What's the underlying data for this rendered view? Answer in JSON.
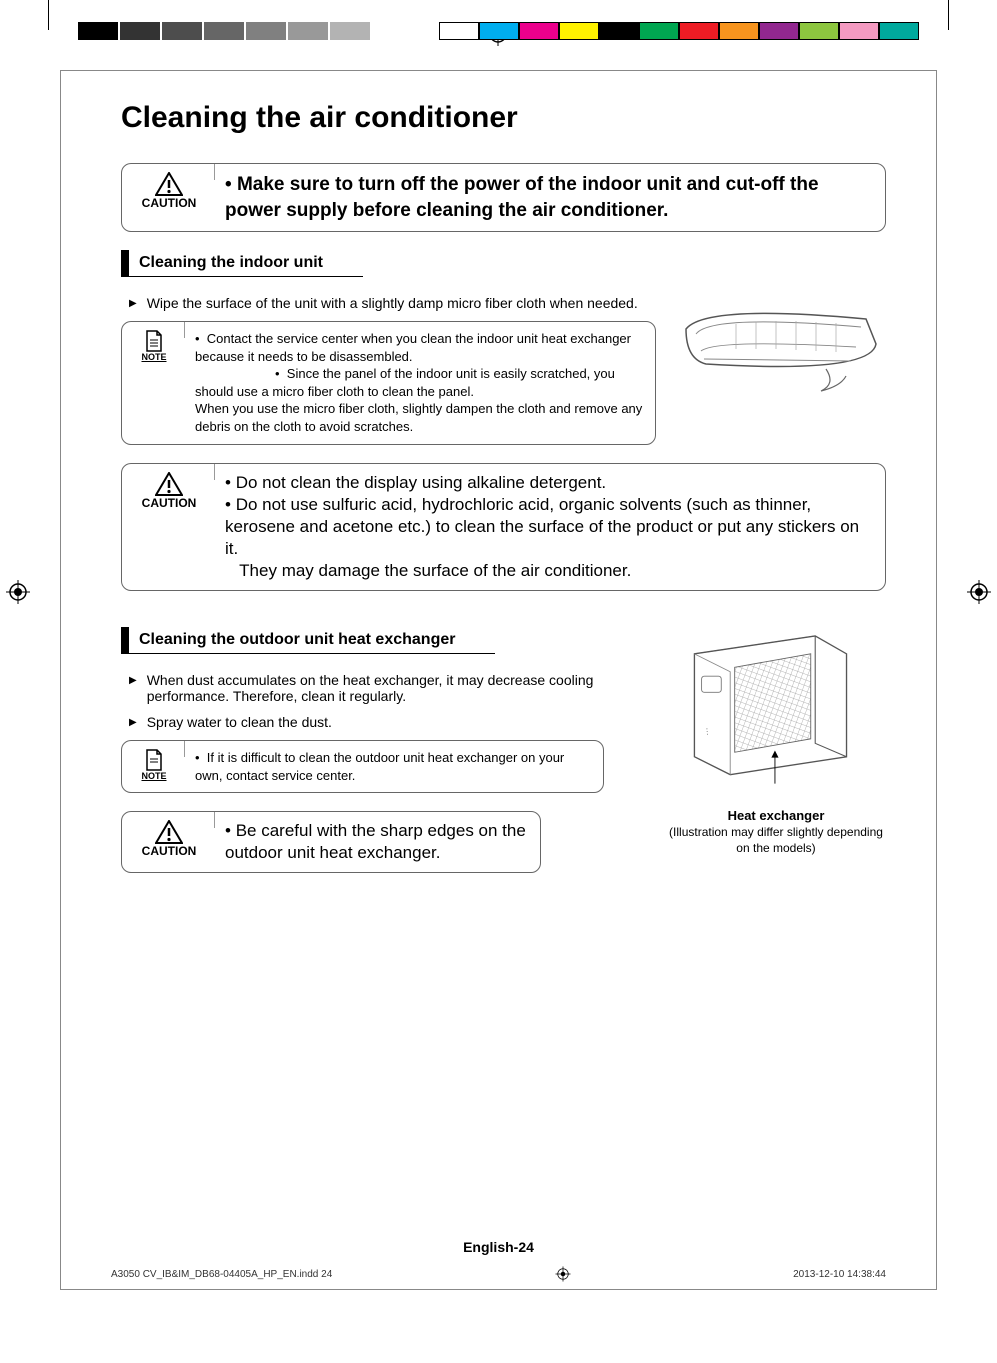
{
  "print_marks": {
    "gray_shades": [
      "#000000",
      "#333333",
      "#4d4d4d",
      "#666666",
      "#808080",
      "#999999",
      "#b3b3b3"
    ],
    "color_swatches": [
      "#ffffff",
      "#00aeef",
      "#ec008c",
      "#fff200",
      "#000000",
      "#00a651",
      "#ed1c24",
      "#f7941e",
      "#92278f",
      "#8dc63f",
      "#f49ac1",
      "#00a99d"
    ]
  },
  "page": {
    "title": "Cleaning the air conditioner",
    "caution1": {
      "label": "CAUTION",
      "text": "Make sure to turn off the power of the indoor unit and cut-off the power supply before cleaning the air conditioner."
    },
    "section1": {
      "header": "Cleaning the indoor unit",
      "bullet1": "Wipe the surface of the unit with a slightly damp micro fiber cloth when needed.",
      "note": {
        "label": "NOTE",
        "item1": "Contact the service center when you clean the indoor unit heat exchanger because it needs to be disassembled.",
        "item2": "Since the panel of the indoor unit is easily scratched, you should use a micro fiber cloth to clean the panel.",
        "item3": "When you use the micro fiber cloth, slightly dampen the cloth and remove any debris on the cloth to avoid scratches."
      },
      "caution": {
        "label": "CAUTION",
        "item1": "Do not clean the display using alkaline detergent.",
        "item2": "Do not use sulfuric acid, hydrochloric acid, organic solvents (such as thinner, kerosene and acetone etc.) to clean the surface of the product or put any stickers on it.",
        "item3": "They may damage the surface of the air conditioner."
      }
    },
    "section2": {
      "header": "Cleaning the outdoor unit heat exchanger",
      "bullet1": "When dust accumulates on the heat exchanger, it may decrease cooling performance. Therefore, clean it regularly.",
      "bullet2": "Spray water to clean the dust.",
      "note": {
        "label": "NOTE",
        "text": "If it is difficult to clean the outdoor unit heat exchanger on your own, contact service center."
      },
      "caution": {
        "label": "CAUTION",
        "text": "Be careful with the sharp edges on the outdoor unit heat exchanger."
      },
      "img_caption_bold": "Heat exchanger",
      "img_caption": "(Illustration may differ slightly depending on the models)"
    },
    "footer_page": "English-24",
    "footer_file": "A3050 CV_IB&IM_DB68-04405A_HP_EN.indd   24",
    "footer_date": "2013-12-10   14:38:44"
  }
}
